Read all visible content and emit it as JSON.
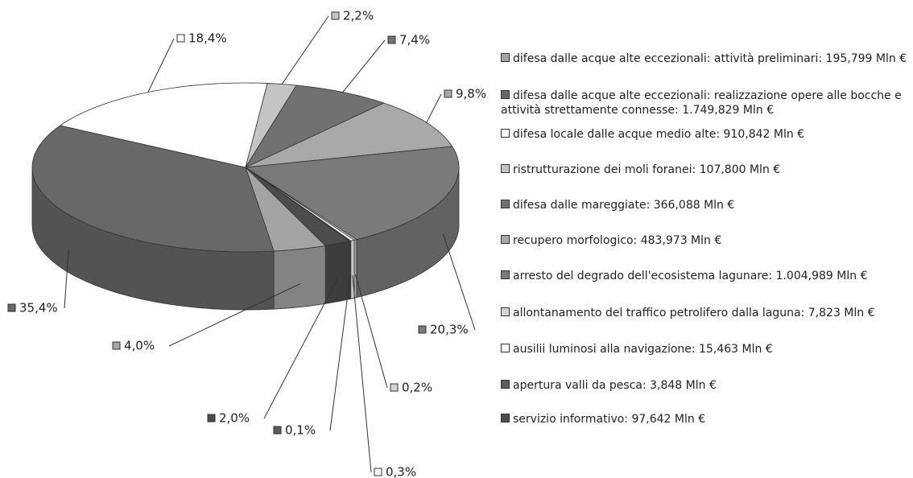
{
  "chart_data": {
    "type": "pie",
    "categories": [
      "difesa dalle acque alte eccezionali: attività preliminari: 195,799 Mln €",
      "difesa dalle acque alte eccezionali: realizzazione opere alle bocche e attività strettamente connesse: 1.749,829 Mln €",
      "difesa locale dalle acque medio alte: 910,842 Mln €",
      "ristrutturazione dei moli foranei: 107,800 Mln €",
      "difesa dalle mareggiate: 366,088 Mln €",
      "recupero morfologico: 483,973 Mln €",
      "arresto del degrado dell'ecosistema lagunare: 1.004,989 Mln €",
      "allontanamento del traffico petrolifero dalla laguna: 7,823 Mln €",
      "ausilii luminosi alla navigazione: 15,463 Mln €",
      "apertura valli da pesca: 3,848 Mln €",
      "servizio informativo: 97,642 Mln €"
    ],
    "values": [
      4.0,
      35.4,
      18.4,
      2.2,
      7.4,
      9.8,
      20.3,
      0.2,
      0.3,
      0.1,
      2.0
    ],
    "value_labels": [
      "4,0%",
      "35,4%",
      "18,4%",
      "2,2%",
      "7,4%",
      "9,8%",
      "20,3%",
      "0,2%",
      "0,3%",
      "0,1%",
      "2,0%"
    ],
    "colors": [
      "#a4a4a4",
      "#686868",
      "#ffffff",
      "#c4c4c4",
      "#717171",
      "#a9a9a9",
      "#7a7a7a",
      "#d4d4d4",
      "#f8f8f8",
      "#5c5c5c",
      "#4c4c4c"
    ]
  }
}
